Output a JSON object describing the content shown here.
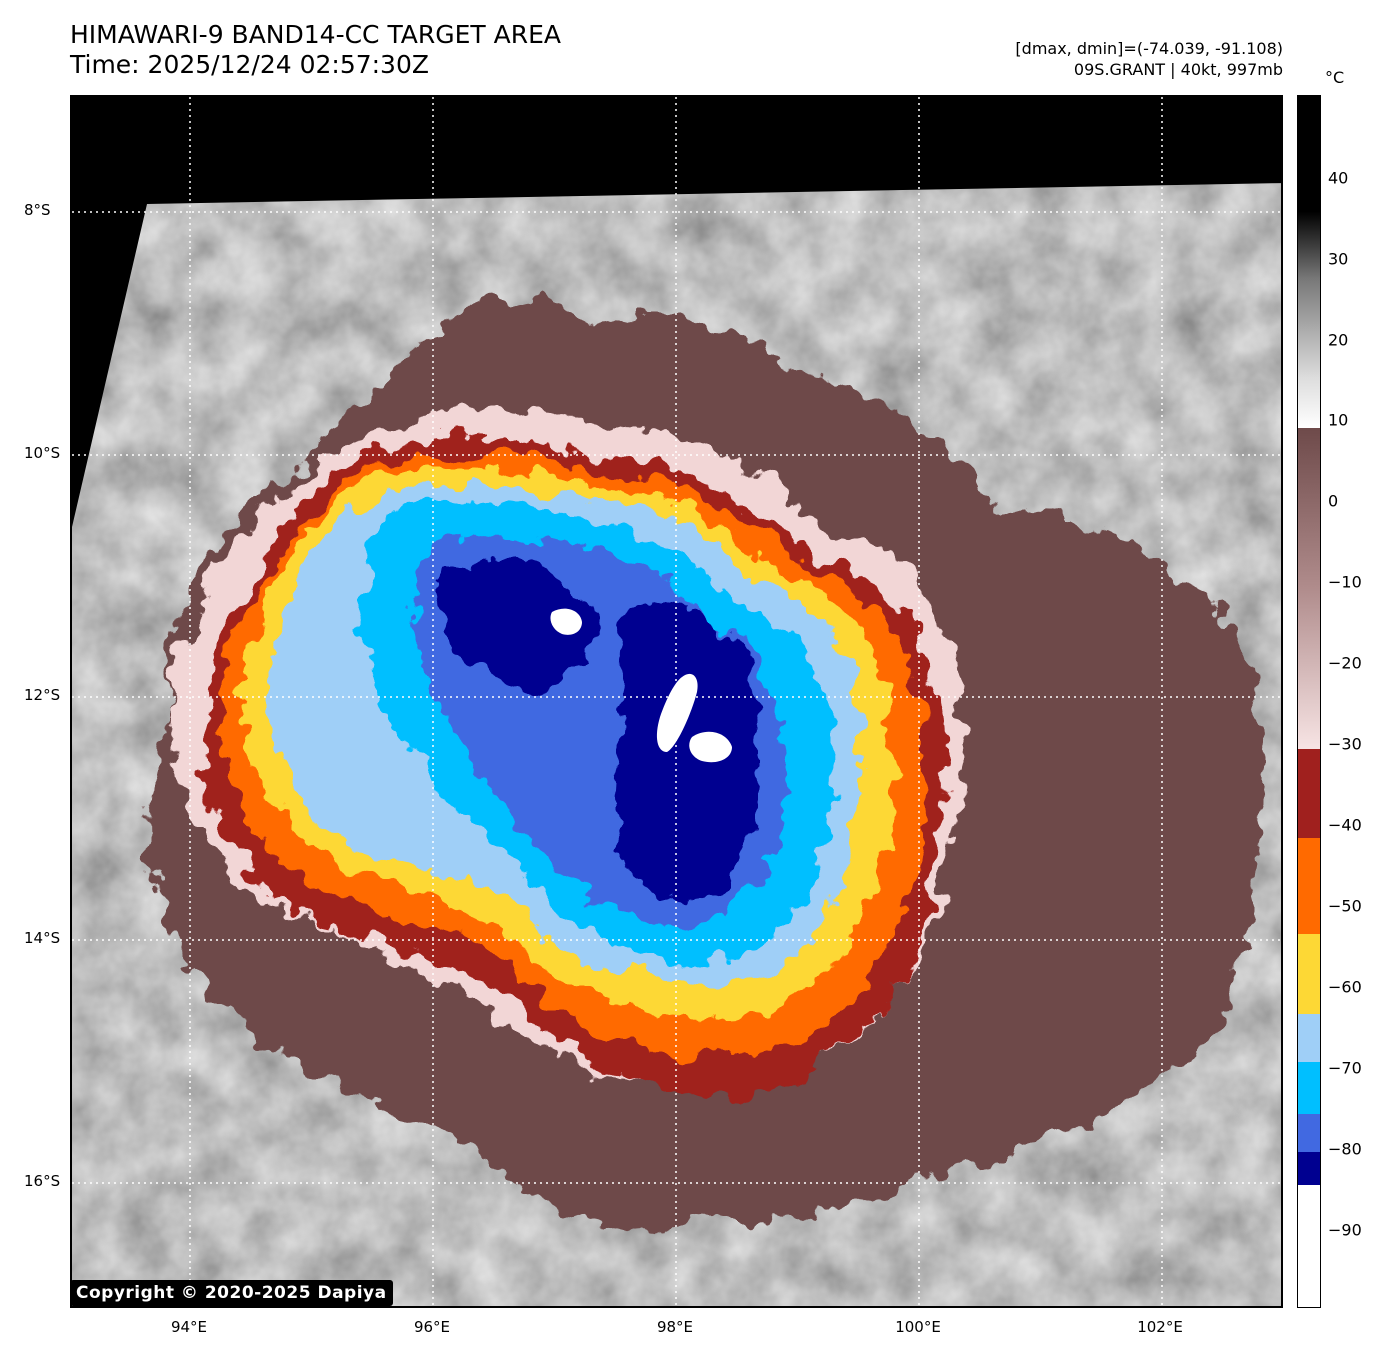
{
  "header": {
    "title_line1": "HIMAWARI-9 BAND14-CC TARGET AREA",
    "title_line2": "Time: 2025/12/24 02:57:30Z",
    "info_line1": "[dmax, dmin]=(-74.039, -91.108)",
    "info_line2": "09S.GRANT | 40kt, 997mb"
  },
  "map": {
    "lon_ticks": [
      "94°E",
      "96°E",
      "98°E",
      "100°E",
      "102°E"
    ],
    "lat_ticks": [
      "8°S",
      "10°S",
      "12°S",
      "14°S",
      "16°S"
    ],
    "lon_range": [
      93.0,
      103.0
    ],
    "lat_range": [
      -17.0,
      -7.0
    ],
    "copyright": "Copyright © 2020-2025 Dapiya"
  },
  "colorbar": {
    "unit": "°C",
    "tick_labels": [
      "40",
      "30",
      "20",
      "10",
      "0",
      "−10",
      "−20",
      "−30",
      "−40",
      "−50",
      "−60",
      "−70",
      "−80",
      "−90"
    ],
    "range": [
      -100,
      50
    ],
    "colors": {
      "warm_top": "#000000",
      "warm_gray": "#808080",
      "warm_white": "#ffffff",
      "brown": "#6e4a4a",
      "pink": "#f5dede",
      "dark_red": "#a0201e",
      "orange": "#ff6a00",
      "yellow": "#fdd835",
      "light_blue": "#9fcff7",
      "sky_blue": "#00bfff",
      "royal_blue": "#4169e1",
      "navy": "#000090",
      "coldest": "#ffffff"
    }
  }
}
